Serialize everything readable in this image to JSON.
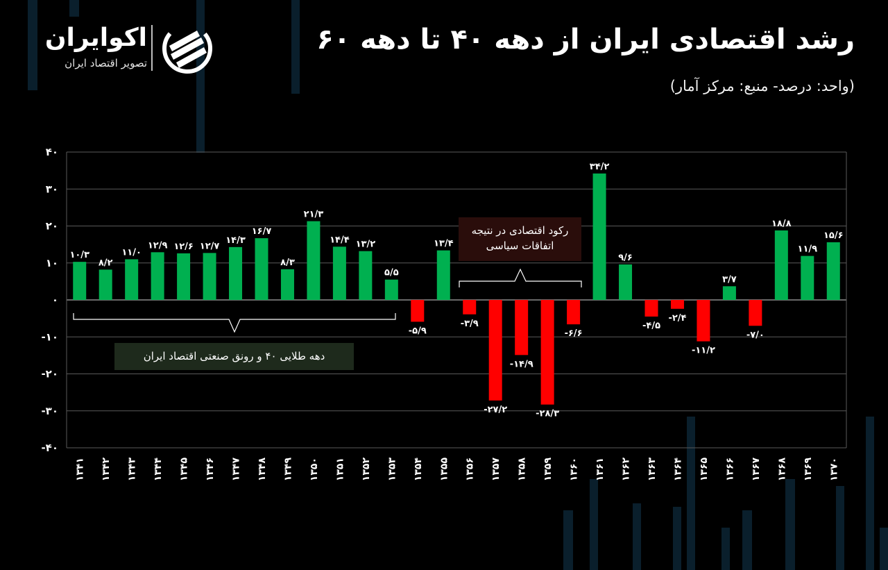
{
  "header": {
    "title": "رشد اقتصادی ایران از دهه ۴۰ تا دهه ۶۰",
    "subtitle": "(واحد: درصد- منبع: مرکز آمار)"
  },
  "brand": {
    "name": "اکوایران",
    "tagline": "تصویر اقتصاد ایران",
    "logo_icon": "ecoiran-logo-icon"
  },
  "annotations": {
    "golden_decade": "دهه طلایی ۴۰ و رونق صنعتی اقتصاد ایران",
    "recession_line1": "رکود اقتصادی در نتیجه",
    "recession_line2": "اتفاقات سیاسی"
  },
  "colors": {
    "background": "#000000",
    "positive": "#00b050",
    "negative": "#ff0000",
    "grid": "#5a5a5a",
    "text": "#ffffff"
  },
  "chart_data": {
    "type": "bar",
    "title": "رشد اقتصادی ایران از دهه ۴۰ تا دهه ۶۰",
    "ylabel": "",
    "xlabel": "",
    "ylim": [
      -40,
      40
    ],
    "yticks": [
      40,
      30,
      20,
      10,
      0,
      -10,
      -20,
      -30,
      -40
    ],
    "ytick_labels": [
      "۴۰",
      "۳۰",
      "۲۰",
      "۱۰",
      "۰",
      "-۱۰",
      "-۲۰",
      "-۳۰",
      "-۴۰"
    ],
    "grid": true,
    "categories": [
      "۱۳۴۱",
      "۱۳۴۲",
      "۱۳۴۳",
      "۱۳۴۴",
      "۱۳۴۵",
      "۱۳۴۶",
      "۱۳۴۷",
      "۱۳۴۸",
      "۱۳۴۹",
      "۱۳۵۰",
      "۱۳۵۱",
      "۱۳۵۲",
      "۱۳۵۳",
      "۱۳۵۴",
      "۱۳۵۵",
      "۱۳۵۶",
      "۱۳۵۷",
      "۱۳۵۸",
      "۱۳۵۹",
      "۱۳۶۰",
      "۱۳۶۱",
      "۱۳۶۲",
      "۱۳۶۳",
      "۱۳۶۴",
      "۱۳۶۵",
      "۱۳۶۶",
      "۱۳۶۷",
      "۱۳۶۸",
      "۱۳۶۹",
      "۱۳۷۰"
    ],
    "values": [
      10.3,
      8.2,
      11.0,
      12.9,
      12.6,
      12.7,
      14.3,
      16.7,
      8.3,
      21.3,
      14.4,
      13.2,
      5.5,
      -5.9,
      13.4,
      -3.9,
      -27.2,
      -14.9,
      -28.3,
      -6.6,
      34.2,
      9.6,
      -4.5,
      -2.4,
      -11.2,
      3.7,
      -7.0,
      18.8,
      11.9,
      15.6
    ],
    "value_labels": [
      "۱۰/۳",
      "۸/۲",
      "۱۱/۰",
      "۱۲/۹",
      "۱۲/۶",
      "۱۲/۷",
      "۱۴/۳",
      "۱۶/۷",
      "۸/۳",
      "۲۱/۳",
      "۱۴/۴",
      "۱۳/۲",
      "۵/۵",
      "-۵/۹",
      "۱۳/۴",
      "-۳/۹",
      "-۲۷/۲",
      "-۱۴/۹",
      "-۲۸/۳",
      "-۶/۶",
      "۳۴/۲",
      "۹/۶",
      "-۴/۵",
      "-۲/۴",
      "-۱۱/۲",
      "۳/۷",
      "-۷/۰",
      "۱۸/۸",
      "۱۱/۹",
      "۱۵/۶"
    ]
  }
}
